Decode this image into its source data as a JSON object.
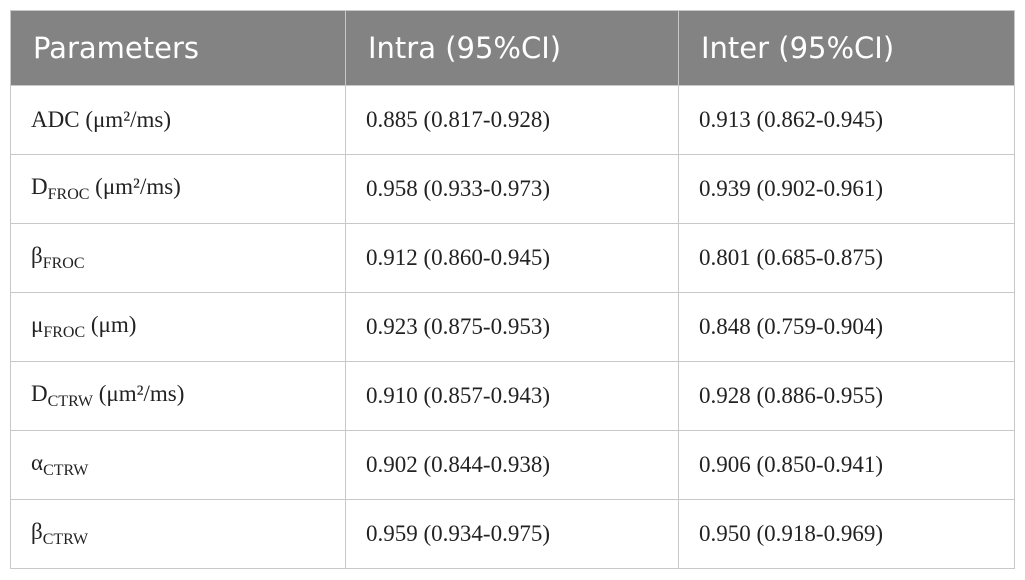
{
  "table": {
    "header": [
      "Parameters",
      "Intra (95%CI)",
      "Inter (95%CI)"
    ],
    "rows": [
      [
        {
          "symbol": "ADC",
          "unit": "(μm²/ms)"
        },
        "0.885 (0.817-0.928)",
        "0.913 (0.862-0.945)"
      ],
      [
        {
          "symbol": "D",
          "subscript": "FROC",
          "unit": "(μm²/ms)"
        },
        "0.958 (0.933-0.973)",
        "0.939 (0.902-0.961)"
      ],
      [
        {
          "symbol": "β",
          "subscript": "FROC"
        },
        "0.912 (0.860-0.945)",
        "0.801 (0.685-0.875)"
      ],
      [
        {
          "symbol": "μ",
          "subscript": "FROC",
          "unit": "(μm)"
        },
        "0.923 (0.875-0.953)",
        "0.848 (0.759-0.904)"
      ],
      [
        {
          "symbol": "D",
          "subscript": "CTRW",
          "unit": "(μm²/ms)"
        },
        "0.910 (0.857-0.943)",
        "0.928 (0.886-0.955)"
      ],
      [
        {
          "symbol": "α",
          "subscript": "CTRW"
        },
        "0.902 (0.844-0.938)",
        "0.906 (0.850-0.941)"
      ],
      [
        {
          "symbol": "β",
          "subscript": "CTRW"
        },
        "0.959 (0.934-0.975)",
        "0.950 (0.918-0.969)"
      ]
    ]
  }
}
